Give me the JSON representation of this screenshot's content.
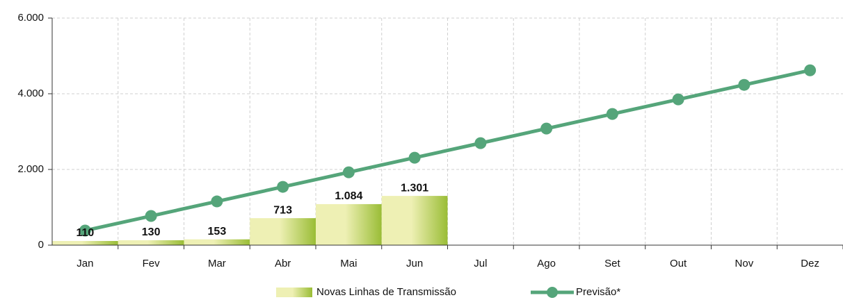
{
  "chart_data": {
    "type": "bar-line",
    "categories": [
      "Jan",
      "Fev",
      "Mar",
      "Abr",
      "Mai",
      "Jun",
      "Jul",
      "Ago",
      "Set",
      "Out",
      "Nov",
      "Dez"
    ],
    "series": [
      {
        "name": "Novas Linhas de Transmissão",
        "type": "bar",
        "colors": [
          "#eef0b4",
          "#9abd36"
        ],
        "values": [
          110,
          130,
          153,
          713,
          1084,
          1301,
          null,
          null,
          null,
          null,
          null,
          null
        ],
        "value_labels": [
          "110",
          "130",
          "153",
          "713",
          "1.084",
          "1.301",
          null,
          null,
          null,
          null,
          null,
          null
        ]
      },
      {
        "name": "Previsão*",
        "type": "line",
        "color": "#55a57a",
        "values": [
          385,
          770,
          1155,
          1540,
          1925,
          2310,
          2695,
          3080,
          3465,
          3850,
          4235,
          4620
        ]
      }
    ],
    "ylim": [
      0,
      6000
    ],
    "yticks": [
      0,
      {
        "value": 2000,
        "label": "2.000"
      },
      {
        "value": 4000,
        "label": "4.000"
      },
      {
        "value": 6000,
        "label": "6.000"
      }
    ],
    "grid": true,
    "legend": "bottom"
  }
}
